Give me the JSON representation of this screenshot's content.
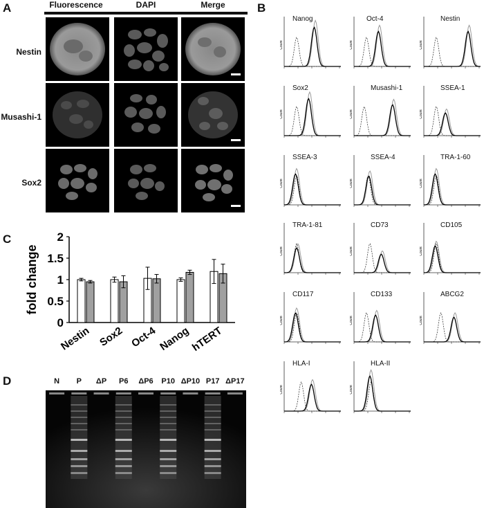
{
  "panels": {
    "A": "A",
    "B": "B",
    "C": "C",
    "D": "D"
  },
  "panel_a": {
    "columns": [
      "Fluorescence",
      "DAPI",
      "Merge"
    ],
    "rows": [
      "Nestin",
      "Musashi-1",
      "Sox2"
    ]
  },
  "panel_b": {
    "markers": [
      "Nanog",
      "Oct-4",
      "Nestin",
      "Sox2",
      "Musashi-1",
      "SSEA-1",
      "SSEA-3",
      "SSEA-4",
      "TRA-1-60",
      "TRA-1-81",
      "CD73",
      "CD105",
      "CD117",
      "CD133",
      "ABCG2",
      "HLA-I",
      "HLA-II"
    ],
    "ylabel": "Count"
  },
  "chart_data": {
    "type": "bar",
    "categories": [
      "Nestin",
      "Sox2",
      "Oct-4",
      "Nanog",
      "hTERT"
    ],
    "series": [
      {
        "values": [
          1.0,
          1.0,
          1.03,
          1.0,
          1.19
        ],
        "errors": [
          0.03,
          0.06,
          0.26,
          0.04,
          0.28
        ],
        "color": "#ffffff"
      },
      {
        "values": [
          0.95,
          0.95,
          1.02,
          1.17,
          1.14
        ],
        "errors": [
          0.03,
          0.14,
          0.1,
          0.05,
          0.22
        ],
        "color": "#a0a0a0"
      }
    ],
    "ylabel": "fold change",
    "ylim": [
      0,
      2
    ],
    "yticks": [
      "0",
      "0.5",
      "1",
      "1.5",
      "2"
    ]
  },
  "panel_d": {
    "lanes": [
      "N",
      "P",
      "ΔP",
      "P6",
      "ΔP6",
      "P10",
      "ΔP10",
      "P17",
      "ΔP17"
    ],
    "ladder_lanes": [
      1,
      3,
      5,
      7
    ]
  }
}
